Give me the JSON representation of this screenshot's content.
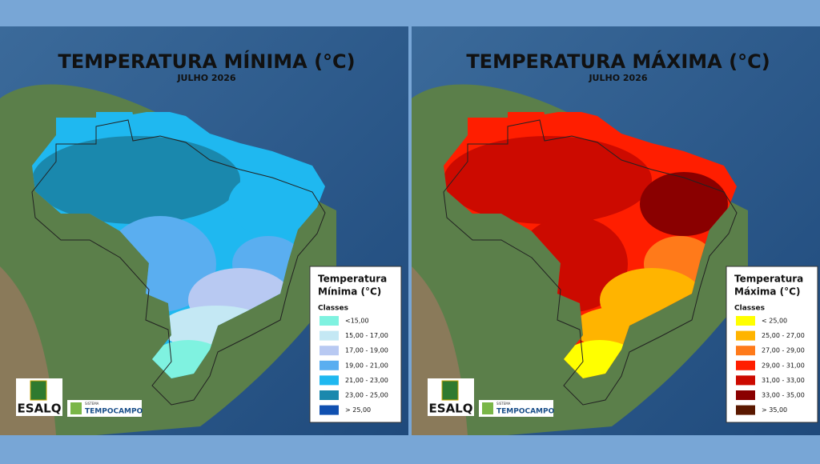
{
  "panels": [
    {
      "title": "TEMPERATURA MÍNIMA (°C)",
      "subtitle": "JULHO 2026",
      "legend": {
        "title_lines": [
          "Temperatura",
          "Mínima (°C)"
        ],
        "classes_label": "Classes",
        "items": [
          {
            "label": "<15,00",
            "color": "#7ff2e0"
          },
          {
            "label": "15,00 - 17,00",
            "color": "#c4e8f4"
          },
          {
            "label": "17,00 - 19,00",
            "color": "#b8c9f2"
          },
          {
            "label": "19,00 - 21,00",
            "color": "#5aaef0"
          },
          {
            "label": "21,00 - 23,00",
            "color": "#1fb8f0"
          },
          {
            "label": "23,00 - 25,00",
            "color": "#1a88ad"
          },
          {
            "label": "> 25,00",
            "color": "#1050b0"
          }
        ]
      },
      "logos": {
        "esalq": "ESALQ",
        "system": "SISTEMA",
        "brand": "TEMPOCAMPO"
      }
    },
    {
      "title": "TEMPERATURA MÁXIMA (°C)",
      "subtitle": "JULHO 2026",
      "legend": {
        "title_lines": [
          "Temperatura",
          "Máxima (°C)"
        ],
        "classes_label": "Classes",
        "items": [
          {
            "label": "< 25,00",
            "color": "#ffff00"
          },
          {
            "label": "25,00 - 27,00",
            "color": "#ffb400"
          },
          {
            "label": "27,00 - 29,00",
            "color": "#ff7a1a"
          },
          {
            "label": "29,00 - 31,00",
            "color": "#ff1e00"
          },
          {
            "label": "31,00 - 33,00",
            "color": "#cc0a00"
          },
          {
            "label": "33,00 - 35,00",
            "color": "#8a0000"
          },
          {
            "label": "> 35,00",
            "color": "#5a1800"
          }
        ]
      },
      "logos": {
        "esalq": "ESALQ",
        "system": "SISTEMA",
        "brand": "TEMPOCAMPO"
      }
    }
  ]
}
